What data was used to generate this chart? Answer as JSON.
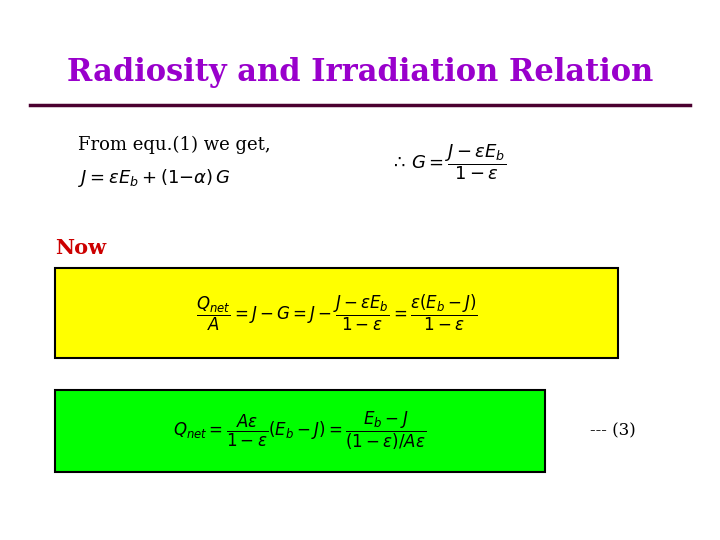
{
  "title": "Radiosity and Irradiation Relation",
  "title_color": "#9900CC",
  "title_fontsize": 22,
  "line_color": "#4B0030",
  "bg_color": "#FFFFFF",
  "text1": "From equ.(1) we get,",
  "now_color": "#CC0000",
  "yellow_color": "#FFFF00",
  "green_color": "#00FF00"
}
